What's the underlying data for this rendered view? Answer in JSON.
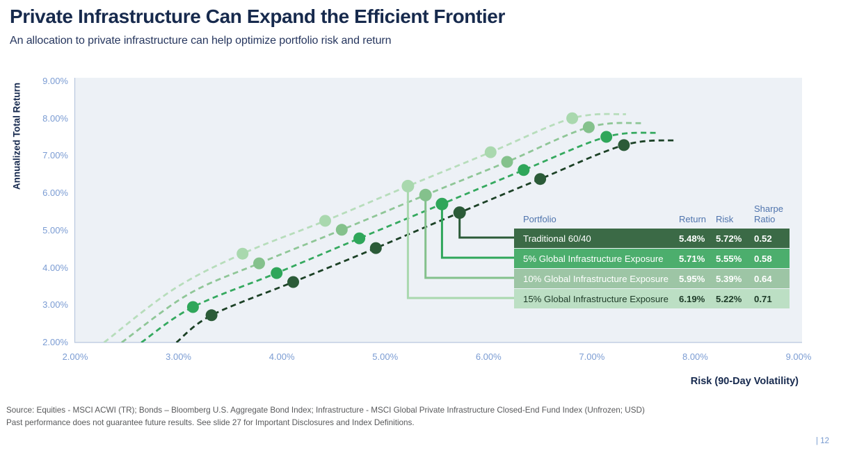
{
  "page": {
    "title": "Private Infrastructure Can Expand the Efficient Frontier",
    "subtitle": "An allocation to private infrastructure can help optimize portfolio risk and return",
    "source_line1": "Source: Equities - MSCI ACWI (TR); Bonds – Bloomberg U.S. Aggregate Bond Index; Infrastructure - MSCI Global Private Infrastructure Closed-End Fund Index (Unfrozen; USD)",
    "source_line2": "Past performance does not guarantee future results. See slide 27 for Important Disclosures and Index Definitions.",
    "page_number": "| 12"
  },
  "colors": {
    "title_navy": "#172a4d",
    "tick_blue": "#7b9cd3",
    "table_header_blue": "#4f74ad",
    "plot_bg": "#edf1f6",
    "axis_line": "#b8c7de",
    "source_gray": "#58595b"
  },
  "chart_data": {
    "type": "scatter",
    "title": "",
    "xlabel": "Risk (90-Day Volatility)",
    "ylabel": "Annualized Total Return",
    "xlim": [
      2,
      9
    ],
    "ylim": [
      2,
      9
    ],
    "grid": false,
    "x_tick_values": [
      2,
      3,
      4,
      5,
      6,
      7,
      8,
      9
    ],
    "x_tick_labels": [
      "2.00%",
      "3.00%",
      "4.00%",
      "5.00%",
      "6.00%",
      "7.00%",
      "8.00%",
      "9.00%"
    ],
    "y_tick_values": [
      2,
      3,
      4,
      5,
      6,
      7,
      8,
      9
    ],
    "y_tick_labels": [
      "2.00%",
      "3.00%",
      "4.00%",
      "5.00%",
      "6.00%",
      "7.00%",
      "8.00%",
      "9.00%"
    ],
    "series": [
      {
        "name": "Traditional 60/40",
        "curve_color": "#1c4126",
        "dot_color": "#2b5b38",
        "curve": [
          [
            2.98,
            2.0
          ],
          [
            3.32,
            2.73
          ],
          [
            4.11,
            3.62
          ],
          [
            4.91,
            4.53
          ],
          [
            5.72,
            5.48
          ],
          [
            6.5,
            6.38
          ],
          [
            7.31,
            7.29
          ],
          [
            7.82,
            7.42
          ]
        ],
        "points": [
          [
            3.32,
            2.73
          ],
          [
            4.11,
            3.62
          ],
          [
            4.91,
            4.53
          ],
          [
            5.72,
            5.48
          ],
          [
            6.5,
            6.38
          ],
          [
            7.31,
            7.29
          ]
        ],
        "highlight": [
          5.72,
          5.48
        ]
      },
      {
        "name": "5% Global Infrastructure Exposure",
        "curve_color": "#35a95f",
        "dot_color": "#2fa65a",
        "curve": [
          [
            2.64,
            2.0
          ],
          [
            3.14,
            2.95
          ],
          [
            3.95,
            3.86
          ],
          [
            4.75,
            4.79
          ],
          [
            5.55,
            5.71
          ],
          [
            6.34,
            6.62
          ],
          [
            7.14,
            7.51
          ],
          [
            7.64,
            7.62
          ]
        ],
        "points": [
          [
            3.14,
            2.95
          ],
          [
            3.95,
            3.86
          ],
          [
            4.75,
            4.79
          ],
          [
            5.55,
            5.71
          ],
          [
            6.34,
            6.62
          ],
          [
            7.14,
            7.51
          ]
        ],
        "highlight": [
          5.55,
          5.71
        ]
      },
      {
        "name": "10% Global Infrastructure Exposure",
        "curve_color": "#8fc697",
        "dot_color": "#84c18c",
        "curve": [
          [
            2.45,
            2.0
          ],
          [
            3.1,
            3.3
          ],
          [
            3.78,
            4.12
          ],
          [
            4.58,
            5.02
          ],
          [
            5.39,
            5.95
          ],
          [
            6.18,
            6.84
          ],
          [
            6.97,
            7.77
          ],
          [
            7.49,
            7.88
          ]
        ],
        "points": [
          [
            3.78,
            4.12
          ],
          [
            4.58,
            5.02
          ],
          [
            5.39,
            5.95
          ],
          [
            6.18,
            6.84
          ],
          [
            6.97,
            7.77
          ]
        ],
        "highlight": [
          5.39,
          5.95
        ]
      },
      {
        "name": "15% Global Infrastructure Exposure",
        "curve_color": "#b7ddbb",
        "dot_color": "#a9d8ae",
        "curve": [
          [
            2.28,
            2.0
          ],
          [
            2.95,
            3.42
          ],
          [
            3.62,
            4.38
          ],
          [
            4.42,
            5.26
          ],
          [
            5.22,
            6.19
          ],
          [
            6.02,
            7.1
          ],
          [
            6.81,
            8.01
          ],
          [
            7.33,
            8.12
          ]
        ],
        "points": [
          [
            3.62,
            4.38
          ],
          [
            4.42,
            5.26
          ],
          [
            5.22,
            6.19
          ],
          [
            6.02,
            7.1
          ],
          [
            6.81,
            8.01
          ]
        ],
        "highlight": [
          5.22,
          6.19
        ]
      }
    ]
  },
  "table": {
    "headers": [
      "Portfolio",
      "Return",
      "Risk",
      "Sharpe Ratio"
    ],
    "rows": [
      {
        "label": "Traditional 60/40",
        "return": "5.48%",
        "risk": "5.72%",
        "sharpe": "0.52",
        "bg": "#3b6a46",
        "fg": "#ffffff"
      },
      {
        "label": "5% Global Infrastructure Exposure",
        "return": "5.71%",
        "risk": "5.55%",
        "sharpe": "0.58",
        "bg": "#4cae6d",
        "fg": "#ffffff"
      },
      {
        "label": "10% Global Infrastructure Exposure",
        "return": "5.95%",
        "risk": "5.39%",
        "sharpe": "0.64",
        "bg": "#9dc5a5",
        "fg": "#ffffff"
      },
      {
        "label": "15% Global Infrastructure Exposure",
        "return": "6.19%",
        "risk": "5.22%",
        "sharpe": "0.71",
        "bg": "#bcdfc4",
        "fg": "#1d3a27"
      }
    ]
  }
}
